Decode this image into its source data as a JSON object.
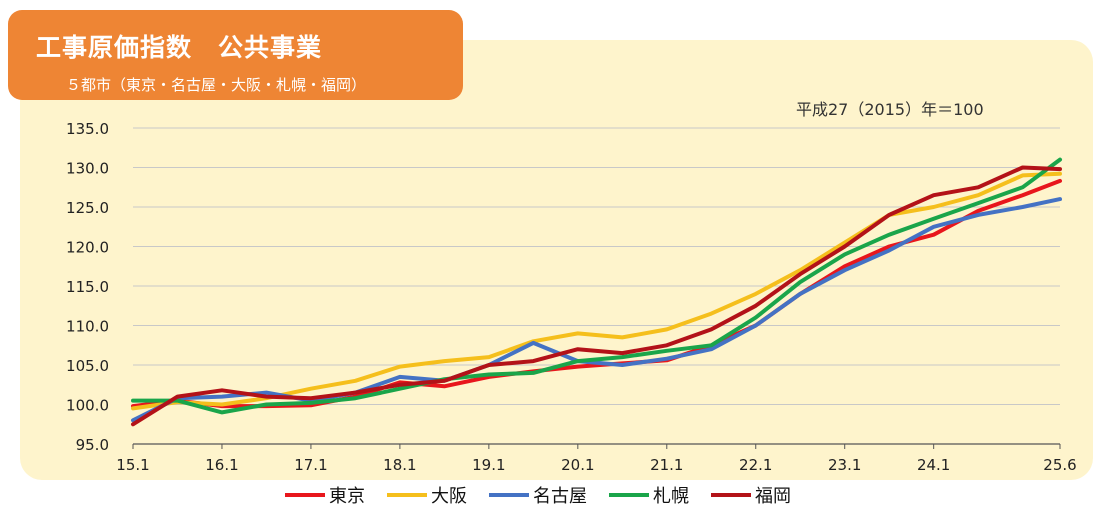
{
  "title": "工事原価指数　公共事業",
  "subtitle": "５都市（東京・名古屋・大阪・札幌・福岡）",
  "base_note": "平成27（2015）年＝100",
  "chart_data": {
    "type": "line",
    "title": "工事原価指数　公共事業",
    "subtitle": "５都市（東京・名古屋・大阪・札幌・福岡）",
    "ylim": [
      95,
      135
    ],
    "yticks": [
      "95.0",
      "100.0",
      "105.0",
      "110.0",
      "115.0",
      "120.0",
      "125.0",
      "130.0",
      "135.0"
    ],
    "xticks": [
      "15.1",
      "16.1",
      "17.1",
      "18.1",
      "19.1",
      "20.1",
      "21.1",
      "22.1",
      "23.1",
      "24.1",
      "25.6"
    ],
    "x": [
      2015.0,
      2015.5,
      2016.0,
      2016.5,
      2017.0,
      2017.5,
      2018.0,
      2018.5,
      2019.0,
      2019.5,
      2020.0,
      2020.5,
      2021.0,
      2021.5,
      2022.0,
      2022.5,
      2023.0,
      2023.5,
      2024.0,
      2024.5,
      2025.0,
      2025.42
    ],
    "series": [
      {
        "name": "東京",
        "color": "#e8161c",
        "values": [
          99.8,
          100.5,
          99.8,
          99.8,
          99.9,
          101.0,
          102.8,
          102.3,
          103.5,
          104.2,
          104.8,
          105.2,
          105.6,
          107.5,
          110.0,
          114.0,
          117.5,
          120.0,
          121.5,
          124.5,
          126.5,
          128.3
        ]
      },
      {
        "name": "大阪",
        "color": "#f5bf1c",
        "values": [
          99.5,
          100.3,
          100.0,
          100.8,
          102.0,
          103.0,
          104.8,
          105.5,
          106.0,
          108.0,
          109.0,
          108.5,
          109.5,
          111.5,
          114.0,
          117.0,
          120.5,
          124.0,
          125.0,
          126.5,
          129.0,
          129.2
        ]
      },
      {
        "name": "名古屋",
        "color": "#4472c4",
        "values": [
          98.0,
          100.8,
          101.0,
          101.5,
          100.5,
          101.5,
          103.5,
          103.0,
          105.0,
          107.8,
          105.5,
          105.0,
          105.8,
          107.0,
          110.0,
          114.0,
          117.0,
          119.5,
          122.5,
          124.0,
          125.0,
          126.0
        ]
      },
      {
        "name": "札幌",
        "color": "#1aa54a",
        "values": [
          100.5,
          100.5,
          99.0,
          100.0,
          100.2,
          100.8,
          102.0,
          103.2,
          103.8,
          104.0,
          105.5,
          106.0,
          106.8,
          107.5,
          111.0,
          115.5,
          119.0,
          121.5,
          123.5,
          125.5,
          127.5,
          131.0
        ]
      },
      {
        "name": "福岡",
        "color": "#b31218",
        "values": [
          97.5,
          101.0,
          101.8,
          101.0,
          100.8,
          101.5,
          102.5,
          103.0,
          105.0,
          105.5,
          107.0,
          106.5,
          107.5,
          109.5,
          112.5,
          116.5,
          120.0,
          124.0,
          126.5,
          127.5,
          130.0,
          129.8
        ]
      }
    ],
    "ylabel": "",
    "xlabel": "",
    "grid": true,
    "legend_position": "bottom"
  }
}
